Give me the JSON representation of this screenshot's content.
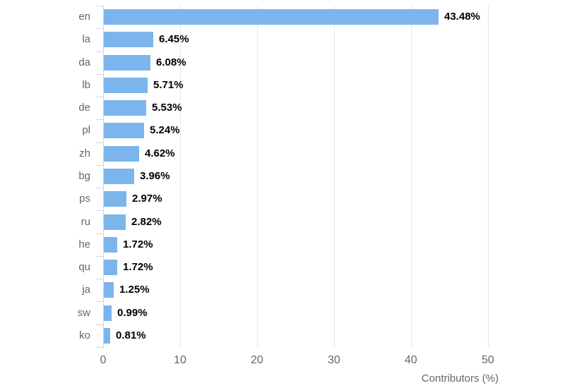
{
  "chart_data": {
    "type": "bar",
    "title": "",
    "categories": [
      "en",
      "la",
      "da",
      "lb",
      "de",
      "pl",
      "zh",
      "bg",
      "ps",
      "ru",
      "he",
      "qu",
      "ja",
      "sw",
      "ko"
    ],
    "values": [
      43.48,
      6.45,
      6.08,
      5.71,
      5.53,
      5.24,
      4.62,
      3.96,
      2.97,
      2.82,
      1.72,
      1.72,
      1.25,
      0.99,
      0.81
    ],
    "value_labels": [
      "43.48%",
      "6.45%",
      "6.08%",
      "5.71%",
      "5.53%",
      "5.24%",
      "4.62%",
      "3.96%",
      "2.97%",
      "2.82%",
      "1.72%",
      "1.72%",
      "1.25%",
      "0.99%",
      "0.81%"
    ],
    "xlabel": "Contributors (%)",
    "ylabel": "",
    "x_ticks": [
      0,
      10,
      20,
      30,
      40,
      50
    ],
    "x_tick_labels": [
      "0",
      "10",
      "20",
      "30",
      "40",
      "50"
    ],
    "xlim": [
      0,
      51.4
    ],
    "grid": true,
    "legend": "none",
    "bar_color": "#7cb5ec",
    "axis_line_color": "#ccd6eb",
    "grid_color": "#e6e6e6",
    "tick_label_color": "#666666",
    "category_label_color": "#666666",
    "value_label_color": "#000000"
  }
}
